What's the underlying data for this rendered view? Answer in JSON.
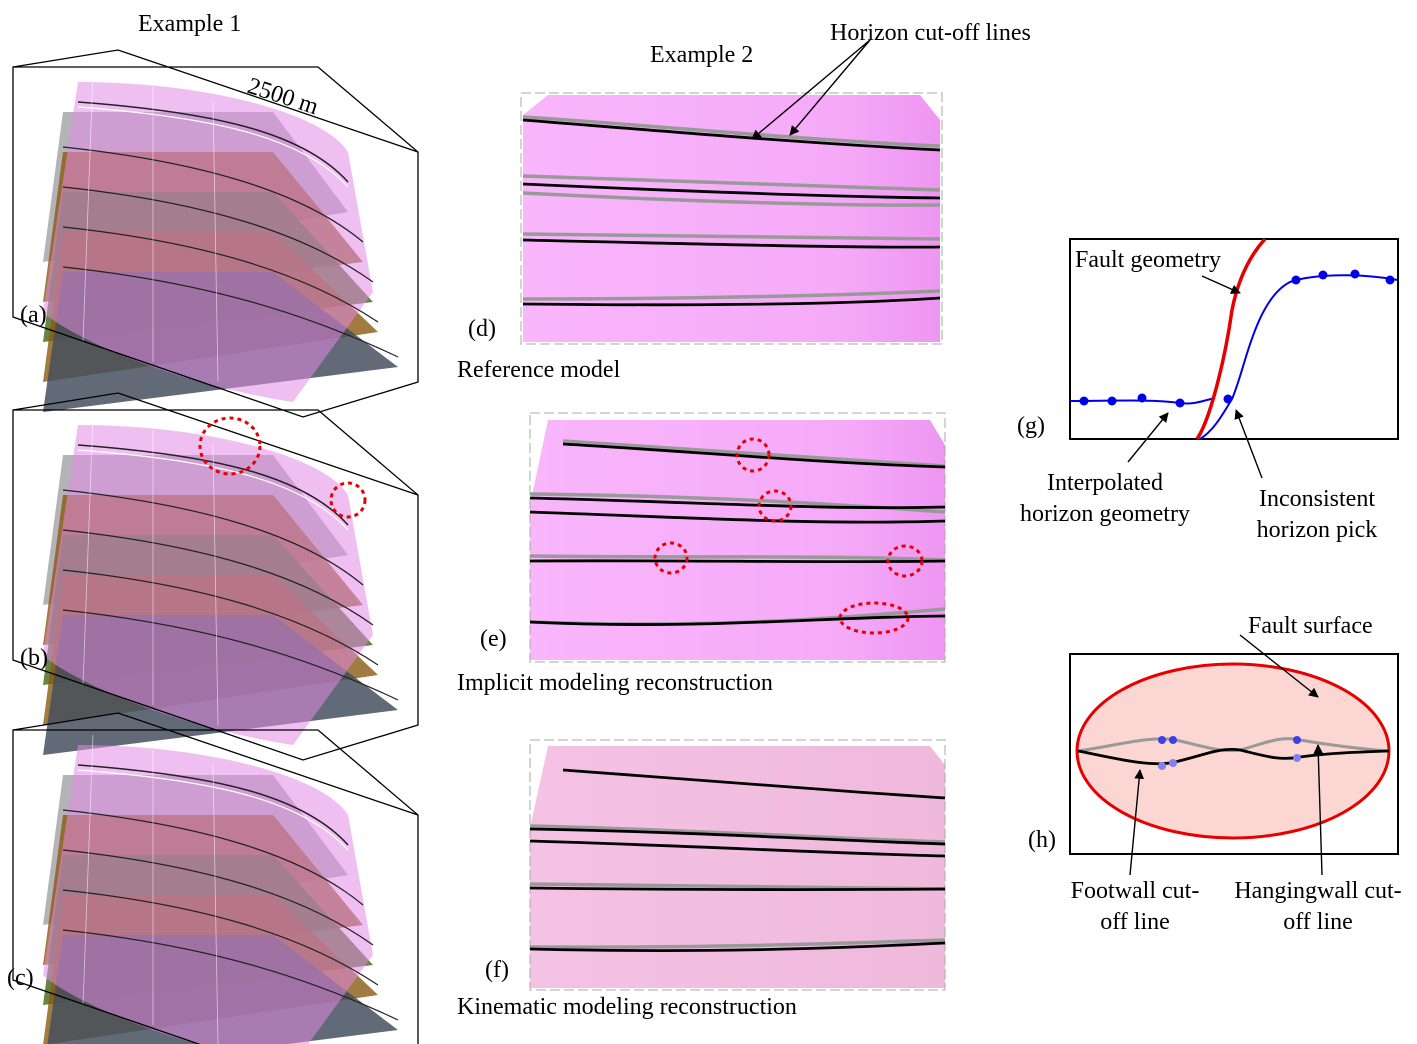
{
  "figure": {
    "example1_title": "Example 1",
    "example2_title": "Example 2",
    "dimension_label": "2500 m",
    "callout_cutoff_lines": "Horizon cut-off lines",
    "panels": {
      "a": "(a)",
      "b": "(b)",
      "c": "(c)",
      "d": "(d)",
      "e": "(e)",
      "f": "(f)",
      "g": "(g)",
      "h": "(h)"
    },
    "captions": {
      "d": "Reference model",
      "e": "Implicit modeling reconstruction",
      "f": "Kinematic modeling reconstruction"
    },
    "panel_g": {
      "fault_geometry": "Fault geometry",
      "interpolated": "Interpolated horizon geometry",
      "inconsistent": "Inconsistent horizon pick"
    },
    "panel_h": {
      "fault_surface": "Fault surface",
      "footwall": "Footwall cut-off line",
      "hangingwall": "Hangingwall cut-off line"
    },
    "colors": {
      "fault": "#e48ae6",
      "horizon_gray": "#9a9a9a",
      "horizon_orange": "#8a5a10",
      "horizon_green": "#4e6e22",
      "horizon_slate": "#45505e",
      "fault_trace": "#e60000",
      "horizon_pick": "#0000e6",
      "highlight_ellipse": "#e60000"
    }
  }
}
